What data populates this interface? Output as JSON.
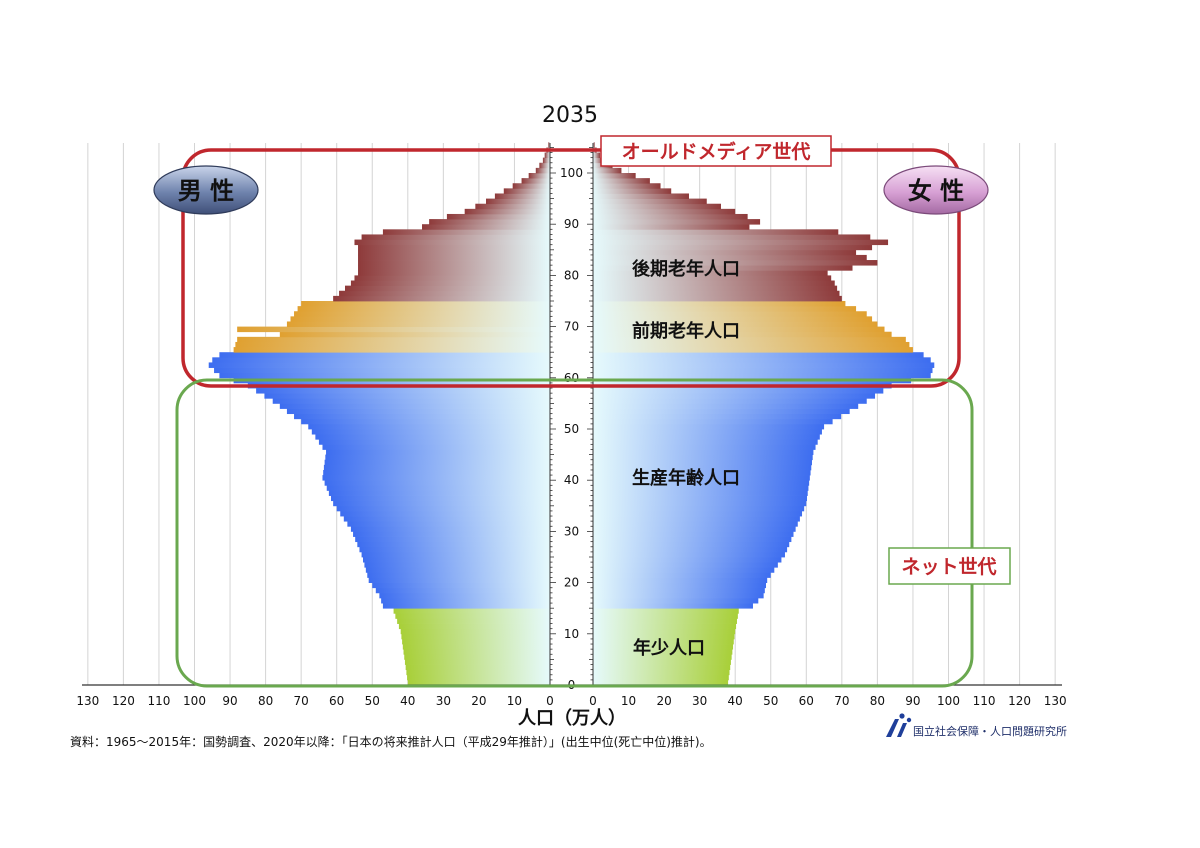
{
  "chart_data": {
    "type": "bar",
    "subtype": "population-pyramid",
    "title": "2035",
    "xlabel": "人口（万人）",
    "source": "資料：1965～2015年：国勢調査、2020年以降：「日本の将来推計人口（平成29年推計）」(出生中位(死亡中位)推計)。",
    "publisher": "国立社会保障・人口問題研究所",
    "xlim": [
      0,
      130
    ],
    "ylim": [
      0,
      105
    ],
    "x_ticks": [
      130,
      120,
      110,
      100,
      90,
      80,
      70,
      60,
      50,
      40,
      30,
      20,
      10,
      0
    ],
    "age_ticks": [
      0,
      10,
      20,
      30,
      40,
      50,
      60,
      70,
      80,
      90,
      100
    ],
    "grid": true,
    "sex_labels": {
      "male": "男 性",
      "female": "女 性"
    },
    "group_labels": [
      {
        "text": "後期老年人口",
        "age": 82
      },
      {
        "text": "前期老年人口",
        "age": 70
      },
      {
        "text": "生産年齢人口",
        "age": 40
      },
      {
        "text": "年少人口",
        "age": 7
      }
    ],
    "annotations": [
      {
        "text": "オールドメディア世代",
        "color": "#c0272d"
      },
      {
        "text": "ネット世代",
        "color": "#c0272d"
      }
    ],
    "groups": [
      {
        "name": "年少人口",
        "ages": [
          0,
          14
        ],
        "color": "#a8cf38"
      },
      {
        "name": "生産年齢人口",
        "ages": [
          15,
          64
        ],
        "color": "#3d6df0"
      },
      {
        "name": "前期老年人口",
        "ages": [
          65,
          74
        ],
        "color": "#e0a030"
      },
      {
        "name": "後期老年人口",
        "ages": [
          75,
          105
        ],
        "color": "#8e3a3a"
      }
    ],
    "male_anchors": [
      [
        0,
        40
      ],
      [
        5,
        41
      ],
      [
        10,
        42
      ],
      [
        14,
        44
      ],
      [
        15,
        47
      ],
      [
        17,
        48
      ],
      [
        20,
        51
      ],
      [
        25,
        53
      ],
      [
        30,
        56
      ],
      [
        35,
        61
      ],
      [
        40,
        64
      ],
      [
        45,
        63
      ],
      [
        50,
        68
      ],
      [
        55,
        78
      ],
      [
        58,
        85
      ],
      [
        60,
        93
      ],
      [
        62,
        96
      ],
      [
        63,
        95
      ],
      [
        64,
        93
      ],
      [
        65,
        89
      ],
      [
        67,
        88
      ],
      [
        68,
        76
      ],
      [
        69,
        88
      ],
      [
        70,
        74
      ],
      [
        72,
        72
      ],
      [
        74,
        70
      ],
      [
        75,
        61
      ],
      [
        78,
        56
      ],
      [
        80,
        54
      ],
      [
        85,
        54
      ],
      [
        86,
        55
      ],
      [
        87,
        53
      ],
      [
        88,
        47
      ],
      [
        89,
        36
      ],
      [
        90,
        34
      ],
      [
        92,
        24
      ],
      [
        94,
        18
      ],
      [
        96,
        13
      ],
      [
        98,
        8
      ],
      [
        100,
        4
      ],
      [
        102,
        2
      ],
      [
        104,
        1
      ],
      [
        105,
        0.5
      ]
    ],
    "female_anchors": [
      [
        0,
        38
      ],
      [
        5,
        39
      ],
      [
        10,
        40
      ],
      [
        14,
        41
      ],
      [
        15,
        45
      ],
      [
        17,
        48
      ],
      [
        20,
        49
      ],
      [
        25,
        54
      ],
      [
        30,
        57
      ],
      [
        35,
        60
      ],
      [
        40,
        61
      ],
      [
        45,
        62
      ],
      [
        50,
        65
      ],
      [
        55,
        77
      ],
      [
        58,
        84
      ],
      [
        60,
        95
      ],
      [
        62,
        96
      ],
      [
        63,
        95
      ],
      [
        64,
        93
      ],
      [
        65,
        90
      ],
      [
        67,
        88
      ],
      [
        68,
        84
      ],
      [
        70,
        80
      ],
      [
        72,
        77
      ],
      [
        74,
        71
      ],
      [
        75,
        70
      ],
      [
        78,
        68
      ],
      [
        80,
        66
      ],
      [
        82,
        80
      ],
      [
        84,
        74
      ],
      [
        86,
        83
      ],
      [
        87,
        78
      ],
      [
        88,
        69
      ],
      [
        89,
        44
      ],
      [
        90,
        47
      ],
      [
        92,
        40
      ],
      [
        94,
        32
      ],
      [
        96,
        22
      ],
      [
        98,
        16
      ],
      [
        100,
        8
      ],
      [
        102,
        3
      ],
      [
        104,
        1
      ],
      [
        105,
        0.5
      ]
    ]
  }
}
